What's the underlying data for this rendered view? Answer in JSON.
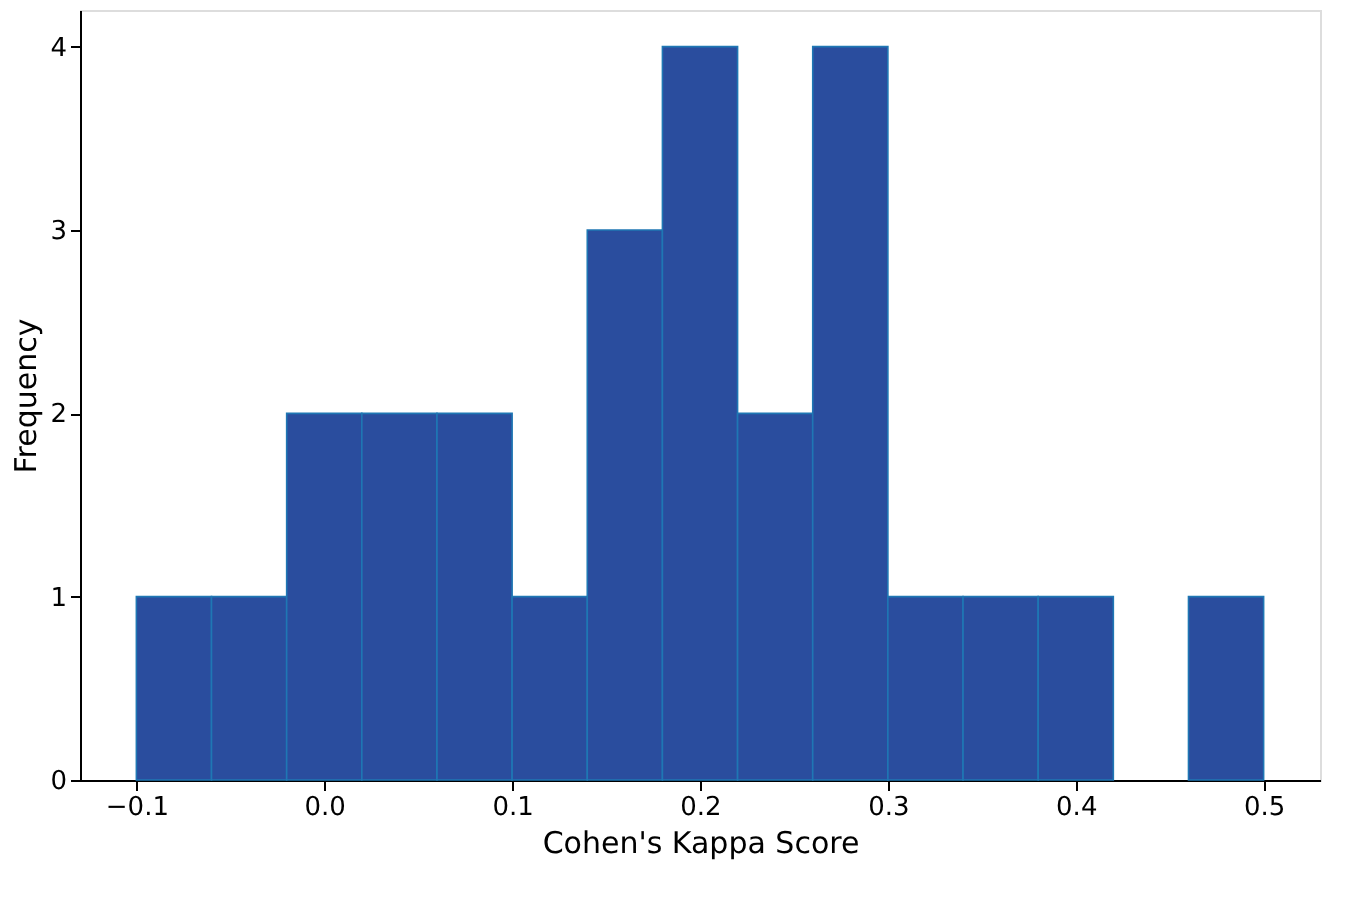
{
  "chart_data": {
    "type": "histogram",
    "xlabel": "Cohen's Kappa Score",
    "ylabel": "Frequency",
    "bins": [
      -0.1,
      -0.06,
      -0.02,
      0.02,
      0.06,
      0.1,
      0.14,
      0.18,
      0.22,
      0.26,
      0.3,
      0.34,
      0.38,
      0.42,
      0.46,
      0.5
    ],
    "values": [
      1,
      1,
      2,
      2,
      2,
      1,
      3,
      4,
      2,
      4,
      1,
      1,
      1,
      0,
      1
    ],
    "color": "#2a4d9e",
    "xlim": [
      -0.13,
      0.53
    ],
    "xticks": [
      {
        "value": -0.1,
        "label": "−0.1"
      },
      {
        "value": 0,
        "label": "0.0"
      },
      0.1,
      0.2,
      0.3,
      0.4,
      0.5
    ],
    "ylim": [
      0,
      4.2
    ],
    "yticks": [
      0,
      1,
      2,
      3,
      4
    ],
    "grid": false
  }
}
